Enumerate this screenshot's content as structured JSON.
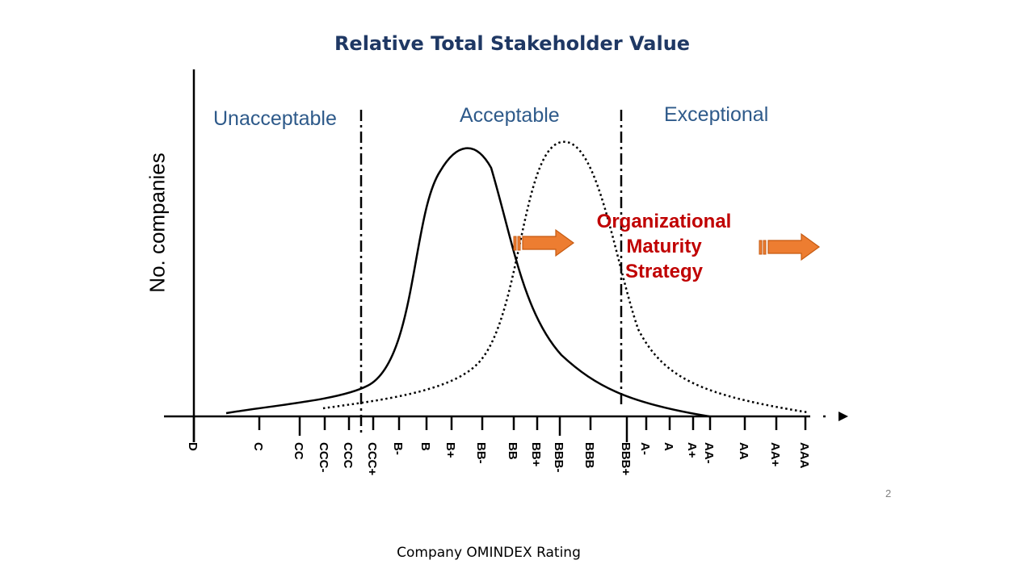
{
  "title": "Relative Total Stakeholder Value",
  "zones": {
    "unacceptable": "Unacceptable",
    "acceptable": "Acceptable",
    "exceptional": "Exceptional"
  },
  "y_axis_label": "No. companies",
  "x_axis_label": "Company OMINDEX Rating",
  "strategy_label": [
    "Organizational",
    "Maturity",
    "Strategy"
  ],
  "ratings": [
    "D",
    "C",
    "CC",
    "CCC-",
    "CCC",
    "CCC+",
    "B-",
    "B",
    "B+",
    "BB-",
    "BB",
    "BB+",
    "BBB-",
    "BBB",
    "BBB+",
    "A-",
    "A",
    "A+",
    "AA-",
    "AA",
    "AA+",
    "AAA"
  ],
  "page_number": "2",
  "colors": {
    "title": "#1f3864",
    "zone_text": "#2e5a8a",
    "strategy_text": "#c00000",
    "arrow_fill": "#ed7d31",
    "arrow_stroke": "#c55a11",
    "axis": "#000000"
  },
  "curves": {
    "current_distribution": "solid",
    "target_distribution": "dotted"
  }
}
